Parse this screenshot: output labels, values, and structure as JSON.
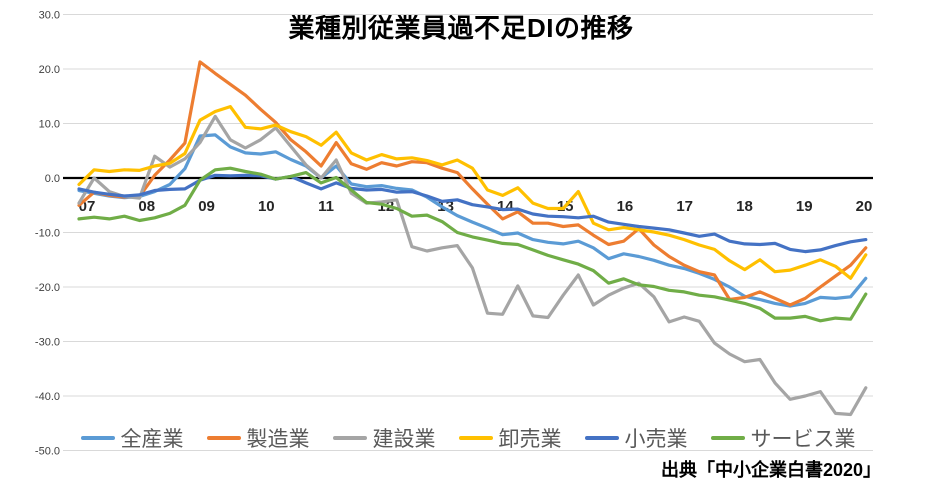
{
  "page": {
    "background": "#ffffff"
  },
  "chart_data": {
    "type": "line",
    "title": "業種別従業員過不足DIの推移",
    "source": "出典「中小企業白書2020」",
    "grid": true,
    "legend_position": "bottom",
    "x_axis": {
      "tick_labels": [
        "07",
        "08",
        "09",
        "10",
        "11",
        "12",
        "13",
        "14",
        "15",
        "16",
        "17",
        "18",
        "19",
        "20"
      ],
      "points_per_year": 4,
      "range_note": "quarterly points from 07 to 20"
    },
    "y_axis": {
      "tick_labels": [
        "30.0",
        "20.0",
        "10.0",
        "0.0",
        "-10.0",
        "-20.0",
        "-30.0",
        "-40.0",
        "-50.0"
      ],
      "min": -50,
      "max": 30,
      "zero_line": true
    },
    "colors": {
      "gridline": "#d9d9d9",
      "zero_line": "#000000",
      "axis_text": "#404040",
      "legend_text": "#595959"
    },
    "series": [
      {
        "name": "全産業",
        "color": "#5B9BD5",
        "values": [
          -2.3,
          -2.8,
          -3.3,
          -3.6,
          -3.4,
          -2.5,
          -1.2,
          1.7,
          7.7,
          7.9,
          5.7,
          4.6,
          4.4,
          4.8,
          3.4,
          2.2,
          0.0,
          2.2,
          -1.1,
          -1.6,
          -1.4,
          -1.9,
          -2.2,
          -3.5,
          -5.3,
          -6.9,
          -8.1,
          -9.2,
          -10.4,
          -10.1,
          -11.3,
          -11.8,
          -12.1,
          -11.6,
          -12.8,
          -14.8,
          -13.9,
          -14.4,
          -15.1,
          -16.0,
          -16.6,
          -17.5,
          -18.6,
          -20.0,
          -21.7,
          -22.3,
          -23.0,
          -23.5,
          -23.0,
          -21.9,
          -22.1,
          -21.8,
          -18.4
        ]
      },
      {
        "name": "製造業",
        "color": "#ED7D31",
        "values": [
          -5.0,
          -2.6,
          -3.2,
          -3.5,
          -3.4,
          0.5,
          3.3,
          6.4,
          21.3,
          19.2,
          17.2,
          15.2,
          12.6,
          10.2,
          7.0,
          4.8,
          2.2,
          6.5,
          2.6,
          1.6,
          2.8,
          2.2,
          3.0,
          2.8,
          1.8,
          1.0,
          -2.0,
          -4.8,
          -7.5,
          -6.2,
          -8.3,
          -8.3,
          -8.9,
          -8.6,
          -10.5,
          -12.2,
          -11.6,
          -9.3,
          -12.3,
          -14.4,
          -16.0,
          -17.2,
          -17.8,
          -22.3,
          -21.9,
          -20.9,
          -22.1,
          -23.3,
          -22.1,
          -20.0,
          -18.0,
          -16.0,
          -12.8
        ]
      },
      {
        "name": "建設業",
        "color": "#A5A5A5",
        "values": [
          -4.6,
          0.0,
          -2.5,
          -3.4,
          -3.7,
          4.0,
          2.0,
          3.5,
          6.5,
          11.3,
          7.0,
          5.5,
          7.0,
          9.2,
          5.8,
          2.4,
          0.0,
          3.3,
          -2.8,
          -4.6,
          -4.4,
          -4.0,
          -12.6,
          -13.4,
          -12.8,
          -12.4,
          -16.5,
          -24.8,
          -25.0,
          -19.8,
          -25.3,
          -25.6,
          -21.5,
          -17.8,
          -23.3,
          -21.5,
          -20.2,
          -19.3,
          -21.8,
          -26.4,
          -25.5,
          -26.3,
          -30.3,
          -32.3,
          -33.7,
          -33.3,
          -37.6,
          -40.6,
          -40.0,
          -39.2,
          -43.2,
          -43.4,
          -38.5
        ]
      },
      {
        "name": "卸売業",
        "color": "#FFC000",
        "values": [
          -1.2,
          1.5,
          1.2,
          1.5,
          1.4,
          2.2,
          2.7,
          4.5,
          10.6,
          12.2,
          13.1,
          9.3,
          9.0,
          9.7,
          8.5,
          7.6,
          6.0,
          8.4,
          4.6,
          3.3,
          4.3,
          3.5,
          3.7,
          3.2,
          2.4,
          3.3,
          1.8,
          -2.2,
          -3.2,
          -1.8,
          -4.6,
          -5.6,
          -5.6,
          -2.5,
          -8.3,
          -9.5,
          -9.1,
          -9.5,
          -9.9,
          -10.5,
          -11.3,
          -12.3,
          -13.1,
          -15.2,
          -16.8,
          -15.0,
          -17.2,
          -16.9,
          -16.0,
          -15.0,
          -16.2,
          -18.4,
          -14.1
        ]
      },
      {
        "name": "小売業",
        "color": "#4472C4",
        "values": [
          -2.0,
          -2.6,
          -3.0,
          -3.3,
          -3.1,
          -2.3,
          -2.1,
          -2.0,
          -0.4,
          0.5,
          0.4,
          0.5,
          0.4,
          -0.2,
          0.3,
          -0.9,
          -2.0,
          -0.9,
          -1.9,
          -2.2,
          -2.1,
          -2.6,
          -2.5,
          -3.3,
          -4.3,
          -4.0,
          -4.9,
          -5.3,
          -5.8,
          -5.7,
          -6.6,
          -7.0,
          -7.1,
          -7.3,
          -7.0,
          -8.1,
          -8.5,
          -8.9,
          -9.2,
          -9.5,
          -10.1,
          -10.7,
          -10.3,
          -11.6,
          -12.1,
          -12.2,
          -12.0,
          -13.1,
          -13.5,
          -13.2,
          -12.4,
          -11.7,
          -11.3
        ]
      },
      {
        "name": "サービス業",
        "color": "#70AD47",
        "values": [
          -7.5,
          -7.2,
          -7.5,
          -7.0,
          -7.8,
          -7.3,
          -6.5,
          -5.0,
          -0.4,
          1.5,
          1.8,
          1.2,
          0.7,
          -0.2,
          0.3,
          1.0,
          -0.9,
          0.1,
          -2.2,
          -4.5,
          -4.8,
          -5.6,
          -7.0,
          -6.8,
          -8.0,
          -10.0,
          -10.8,
          -11.4,
          -12.0,
          -12.2,
          -13.2,
          -14.2,
          -15.0,
          -15.8,
          -17.0,
          -19.3,
          -18.5,
          -19.6,
          -19.9,
          -20.6,
          -20.9,
          -21.5,
          -21.8,
          -22.4,
          -23.0,
          -23.9,
          -25.7,
          -25.7,
          -25.4,
          -26.2,
          -25.7,
          -25.9,
          -21.3
        ]
      }
    ]
  }
}
